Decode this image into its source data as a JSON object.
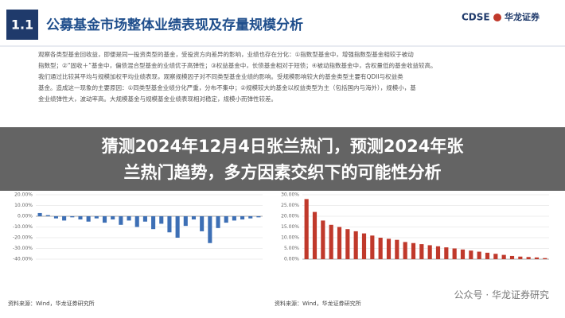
{
  "header": {
    "number": "1.1",
    "title": "公募基金市场整体业绩表现及存量规模分析",
    "logo_en": "CDSE",
    "logo_cn": "华龙证券"
  },
  "paragraphs": [
    "观察各类型基金回收益，即便是同一投资类型的基金，受投资方向差异的影响，业绩也存在分化：①指数型基金中，增强指数型基金相较于被动",
    "指数型；②“固收＋”基金中，偏债混合型基金的业绩优于高弹性；③权益基金中，长债基金相对于短债；④被动指数基金中，含权量低的基金收益较高。",
    "我们通过比较其平均与规模加权平均业绩表现，观察规模因子对不同类型基金业绩的影响。受规模影响较大的基金类型主要有QDII与权益类",
    "基金。造成这一现象的主要原因：①同类型基金业绩分化严重，分布不集中；②规模较大的基金以权益类型为主（包括国内与海外），规模小，基",
    "金业绩弹性大，波动率高。大规模基金与规模基金业绩表现相对稳定，规模小而弹性较差。"
  ],
  "overlay": {
    "line1": "猜测2024年12月4日张兰热门，预测2024年张",
    "line2": "兰热门趋势，多方因素交织下的可能性分析"
  },
  "watermark": "公众号 · 华龙证券研究",
  "charts": [
    {
      "type": "bar",
      "color": "#3d6fb5",
      "values": [
        3,
        1,
        -2,
        -4,
        -1,
        -3,
        -5,
        -2,
        -6,
        -3,
        -8,
        -4,
        -10,
        -5,
        -12,
        -7,
        -15,
        -20,
        -9,
        -3,
        -14,
        -25,
        -11,
        -6,
        -4,
        -3,
        -2,
        -1
      ],
      "ylim": [
        -40,
        20
      ],
      "yticks": [
        {
          "value": 20,
          "label": "20.00%"
        },
        {
          "value": 10,
          "label": "10.00%"
        },
        {
          "value": 0,
          "label": "0.00%"
        },
        {
          "value": -10,
          "label": "-10.00%"
        },
        {
          "value": -20,
          "label": "-20.00%"
        },
        {
          "value": -30,
          "label": "-30.00%"
        },
        {
          "value": -40,
          "label": "-40.00%"
        }
      ],
      "source": "资料来源：Wind，华龙证券研究所"
    },
    {
      "type": "bar",
      "color": "#c0392b",
      "values": [
        28,
        22,
        18,
        16,
        15,
        14,
        13,
        12,
        11,
        10,
        9.5,
        9,
        8,
        7.5,
        7,
        6.5,
        6,
        5.5,
        5,
        4.5,
        4,
        3.5,
        3,
        2.5,
        2,
        1.5,
        1.2,
        1,
        0.8,
        0.5
      ],
      "ylim": [
        0,
        30
      ],
      "yticks": [
        {
          "value": 30,
          "label": "30.00%"
        },
        {
          "value": 25,
          "label": "25.00%"
        },
        {
          "value": 20,
          "label": "20.00%"
        },
        {
          "value": 15,
          "label": "15.00%"
        },
        {
          "value": 10,
          "label": "10.00%"
        },
        {
          "value": 5,
          "label": "5.00%"
        },
        {
          "value": 0,
          "label": "0.00%"
        }
      ],
      "source": "资料来源：Wind，华龙证券研究所"
    }
  ]
}
